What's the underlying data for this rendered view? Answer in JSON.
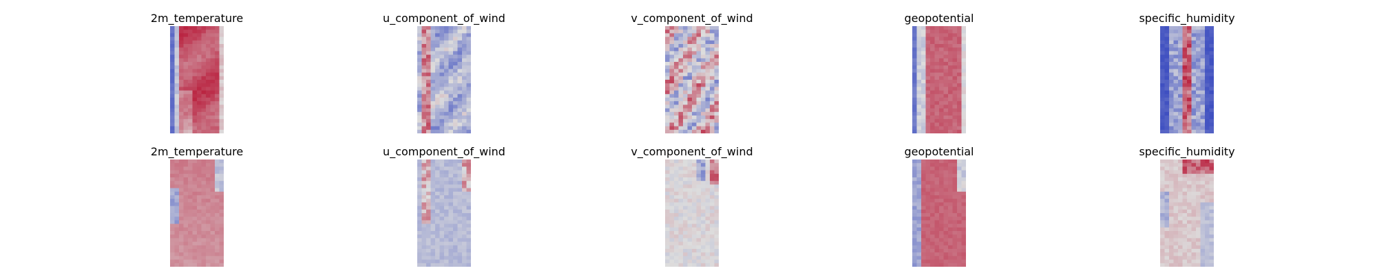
{
  "chart_data": {
    "type": "heatmap",
    "colormap": "coolwarm",
    "colors": {
      "low": "#3b4cc0",
      "mid": "#dddddd",
      "high": "#b40426"
    },
    "axes_visible": false,
    "rows": 2,
    "columns": 5,
    "panels": [
      {
        "title": "2m_temperature",
        "row": 1,
        "col": 1,
        "field": "temp_top"
      },
      {
        "title": "u_component_of_wind",
        "row": 1,
        "col": 2,
        "field": "u_top"
      },
      {
        "title": "v_component_of_wind",
        "row": 1,
        "col": 3,
        "field": "v_top"
      },
      {
        "title": "geopotential",
        "row": 1,
        "col": 4,
        "field": "geo_top"
      },
      {
        "title": "specific_humidity",
        "row": 1,
        "col": 5,
        "field": "hum_top"
      },
      {
        "title": "2m_temperature",
        "row": 2,
        "col": 1,
        "field": "temp_bot"
      },
      {
        "title": "u_component_of_wind",
        "row": 2,
        "col": 2,
        "field": "u_bot"
      },
      {
        "title": "v_component_of_wind",
        "row": 2,
        "col": 3,
        "field": "v_bot"
      },
      {
        "title": "geopotential",
        "row": 2,
        "col": 4,
        "field": "geo_bot"
      },
      {
        "title": "specific_humidity",
        "row": 2,
        "col": 5,
        "field": "hum_bot"
      }
    ]
  }
}
